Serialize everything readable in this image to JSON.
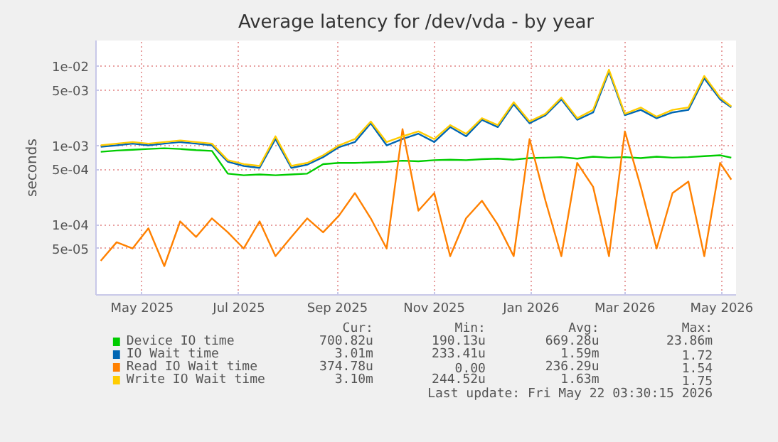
{
  "chart_data": {
    "type": "line",
    "title": "Average latency for /dev/vda - by year",
    "ylabel": "seconds",
    "log": "y",
    "grid": true,
    "legend": "bottom",
    "x": [
      "2025-04-20",
      "2025-04-30",
      "2025-05-10",
      "2025-05-20",
      "2025-05-30",
      "2025-06-09",
      "2025-06-19",
      "2025-06-29",
      "2025-07-09",
      "2025-07-19",
      "2025-07-29",
      "2025-08-08",
      "2025-08-18",
      "2025-08-28",
      "2025-09-07",
      "2025-09-17",
      "2025-09-27",
      "2025-10-07",
      "2025-10-17",
      "2025-10-27",
      "2025-11-06",
      "2025-11-16",
      "2025-11-26",
      "2025-12-06",
      "2025-12-16",
      "2025-12-26",
      "2026-01-05",
      "2026-01-15",
      "2026-01-25",
      "2026-02-04",
      "2026-02-14",
      "2026-02-24",
      "2026-03-06",
      "2026-03-16",
      "2026-03-26",
      "2026-04-05",
      "2026-04-15",
      "2026-04-25",
      "2026-05-05",
      "2026-05-15",
      "2026-05-22"
    ],
    "xlim": [
      "2025-04-17",
      "2026-05-25"
    ],
    "xticks": [
      {
        "value": "2025-05-16",
        "label": "May 2025"
      },
      {
        "value": "2025-07-16",
        "label": "Jul 2025"
      },
      {
        "value": "2025-09-16",
        "label": "Sep 2025"
      },
      {
        "value": "2025-11-16",
        "label": "Nov 2025"
      },
      {
        "value": "2026-01-16",
        "label": "Jan 2026"
      },
      {
        "value": "2026-03-16",
        "label": "Mar 2026"
      },
      {
        "value": "2026-05-16",
        "label": "May 2026"
      }
    ],
    "ylim": [
      1.3e-05,
      0.021
    ],
    "yticks": [
      {
        "value": 5e-05,
        "label": "5e-05"
      },
      {
        "value": 0.0001,
        "label": "1e-04"
      },
      {
        "value": 0.0005,
        "label": "5e-04"
      },
      {
        "value": 0.001,
        "label": "1e-03"
      },
      {
        "value": 0.005,
        "label": "5e-03"
      },
      {
        "value": 0.01,
        "label": "1e-02"
      }
    ],
    "series": [
      {
        "name": "Device IO time",
        "color": "#00cc00",
        "values": [
          0.00083,
          0.00086,
          0.00088,
          0.0009,
          0.00092,
          0.0009,
          0.00087,
          0.00085,
          0.00044,
          0.00042,
          0.00043,
          0.00042,
          0.00043,
          0.00044,
          0.00058,
          0.0006,
          0.0006,
          0.00061,
          0.00062,
          0.00064,
          0.00063,
          0.00065,
          0.00066,
          0.00065,
          0.00067,
          0.00068,
          0.00066,
          0.00069,
          0.0007,
          0.00071,
          0.00068,
          0.00072,
          0.0007,
          0.00071,
          0.00069,
          0.00072,
          0.0007,
          0.00071,
          0.00073,
          0.00075,
          0.0007
        ]
      },
      {
        "name": "IO Wait time",
        "color": "#0066b3",
        "values": [
          0.00096,
          0.001,
          0.00105,
          0.001,
          0.00105,
          0.0011,
          0.00105,
          0.001,
          0.00062,
          0.00055,
          0.00052,
          0.0012,
          0.00052,
          0.00057,
          0.00071,
          0.00095,
          0.0011,
          0.0019,
          0.001,
          0.0012,
          0.0014,
          0.0011,
          0.0017,
          0.0013,
          0.0021,
          0.0017,
          0.0033,
          0.0019,
          0.0024,
          0.0038,
          0.0021,
          0.0026,
          0.0085,
          0.0024,
          0.0028,
          0.0022,
          0.0026,
          0.0028,
          0.007,
          0.0038,
          0.00301
        ]
      },
      {
        "name": "Read IO Wait time",
        "color": "#ff8000",
        "values": [
          3.5e-05,
          6e-05,
          5e-05,
          9e-05,
          3e-05,
          0.00011,
          7e-05,
          0.00012,
          8e-05,
          5e-05,
          0.00011,
          4e-05,
          7e-05,
          0.00012,
          8e-05,
          0.00013,
          0.00025,
          0.00012,
          5e-05,
          0.0016,
          0.00015,
          0.00025,
          4e-05,
          0.00012,
          0.0002,
          0.0001,
          4e-05,
          0.0012,
          0.0002,
          4e-05,
          0.0006,
          0.0003,
          4e-05,
          0.0015,
          0.0003,
          5e-05,
          0.00025,
          0.00035,
          4e-05,
          0.0006,
          0.00037
        ]
      },
      {
        "name": "Write IO Wait time",
        "color": "#ffcc00",
        "values": [
          0.001,
          0.00105,
          0.0011,
          0.00105,
          0.0011,
          0.00115,
          0.0011,
          0.00105,
          0.00065,
          0.00058,
          0.00055,
          0.0013,
          0.00055,
          0.0006,
          0.00075,
          0.001,
          0.0012,
          0.002,
          0.0011,
          0.0013,
          0.0015,
          0.0012,
          0.0018,
          0.0014,
          0.0022,
          0.0018,
          0.0035,
          0.002,
          0.0025,
          0.004,
          0.0022,
          0.0028,
          0.009,
          0.0025,
          0.003,
          0.0023,
          0.0028,
          0.003,
          0.0075,
          0.004,
          0.0031
        ]
      }
    ],
    "annotations": [
      "Cur:",
      "Min:",
      "Avg:",
      "Max:",
      "700.82u",
      "190.13u",
      "669.28u",
      "23.86m",
      "3.01m",
      "233.41u",
      "1.59m",
      "1.72",
      "374.78u",
      "0.00",
      "236.29u",
      "1.54",
      "3.10m",
      "244.52u",
      "1.63m",
      "1.75",
      "Last update: Fri May 22 03:30:15 2026"
    ]
  }
}
